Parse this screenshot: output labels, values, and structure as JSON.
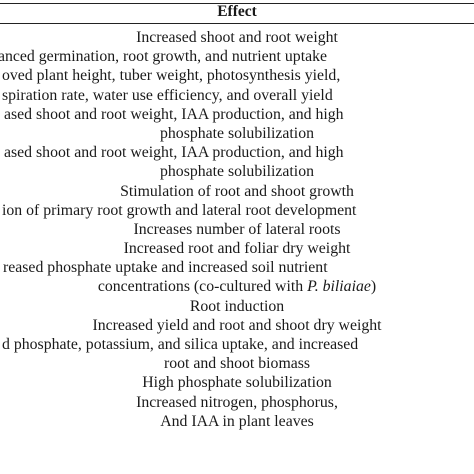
{
  "table": {
    "header": "Effect",
    "lines": [
      "Increased shoot and root weight",
      "anced germination, root growth, and nutrient uptake",
      "oved plant height, tuber weight, photosynthesis yield,",
      "spiration rate, water use efficiency, and overall yield",
      "ased shoot and root weight, IAA production, and high",
      "phosphate solubilization",
      "ased shoot and root weight, IAA production, and high",
      "phosphate solubilization",
      "Stimulation of root and shoot growth",
      "ion of primary root growth and lateral root development",
      "Increases number of lateral roots",
      "Increased root and foliar dry weight",
      "reased phosphate uptake and increased soil nutrient",
      "concentrations (co-cultured with ",
      "Root induction",
      "Increased yield and root and shoot dry weight",
      "d phosphate, potassium, and silica uptake, and increased",
      "root and shoot biomass",
      "High phosphate solubilization",
      "Increased nitrogen, phosphorus,",
      "And IAA in plant leaves"
    ],
    "italic_species": "P. biliaiae",
    "close_paren": ")"
  }
}
